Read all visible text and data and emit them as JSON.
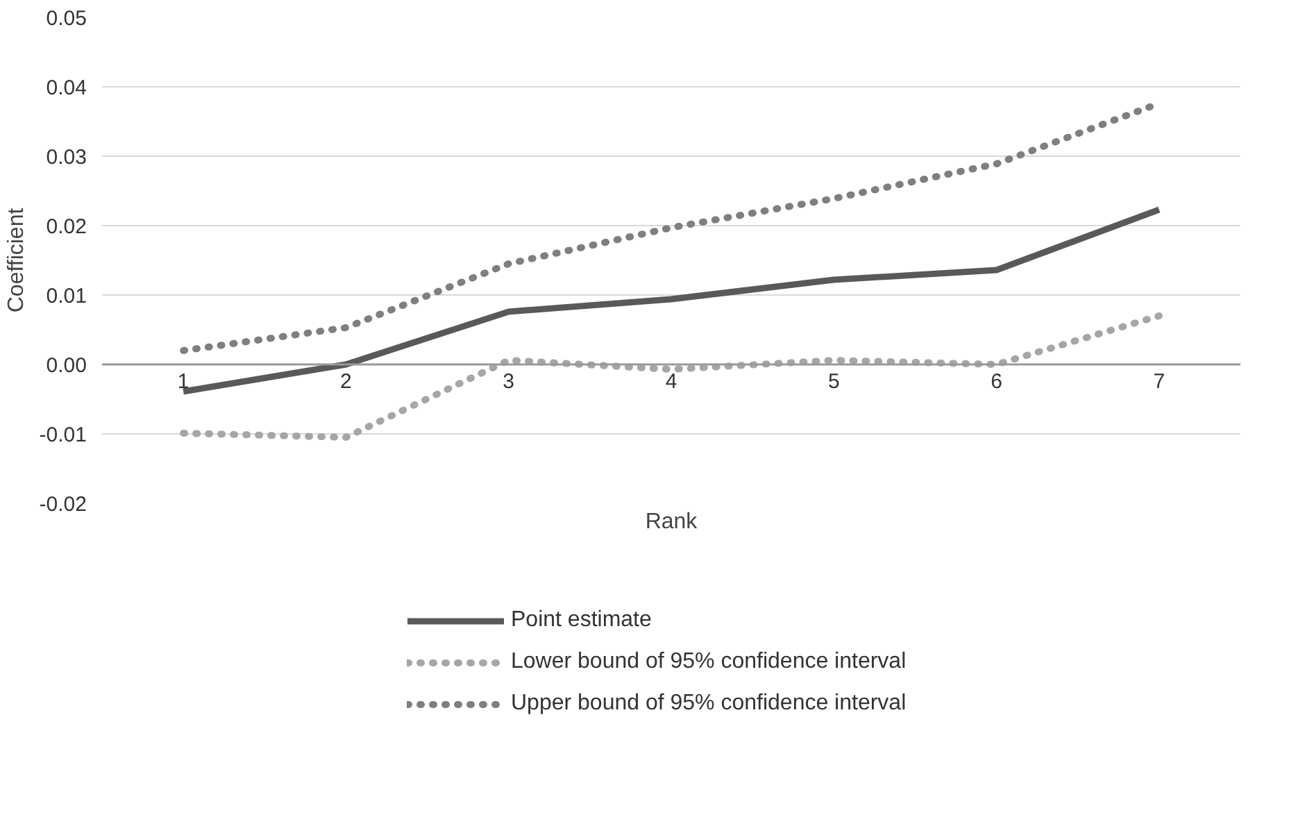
{
  "chart_data": {
    "type": "line",
    "xlabel": "Rank",
    "ylabel": "Coefficient",
    "categories": [
      "1",
      "2",
      "3",
      "4",
      "5",
      "6",
      "7"
    ],
    "series": [
      {
        "name": "Point estimate",
        "color": "#595959",
        "line_style": "solid",
        "values": [
          -0.0039,
          0.0,
          0.0076,
          0.0094,
          0.0122,
          0.0136,
          0.0223
        ]
      },
      {
        "name": "Lower bound of 95% confidence interval",
        "color": "#a6a6a6",
        "line_style": "dotted",
        "values": [
          -0.0099,
          -0.0105,
          0.0006,
          -0.0007,
          0.0006,
          0.0,
          0.007
        ]
      },
      {
        "name": "Upper bound of 95% confidence interval",
        "color": "#7f7f7f",
        "line_style": "dotted",
        "values": [
          0.002,
          0.0053,
          0.0145,
          0.0197,
          0.0239,
          0.0289,
          0.0376
        ]
      }
    ],
    "ylim": [
      -0.02,
      0.05
    ],
    "yticks": [
      {
        "value": -0.02,
        "label": "-0.02"
      },
      {
        "value": -0.01,
        "label": "-0.01"
      },
      {
        "value": 0,
        "label": "0.00"
      },
      {
        "value": 0.01,
        "label": "0.01"
      },
      {
        "value": 0.02,
        "label": "0.02"
      },
      {
        "value": 0.03,
        "label": "0.03"
      },
      {
        "value": 0.04,
        "label": "0.04"
      },
      {
        "value": 0.05,
        "label": "0.05"
      }
    ],
    "grid": "y",
    "legend": "bottom"
  }
}
